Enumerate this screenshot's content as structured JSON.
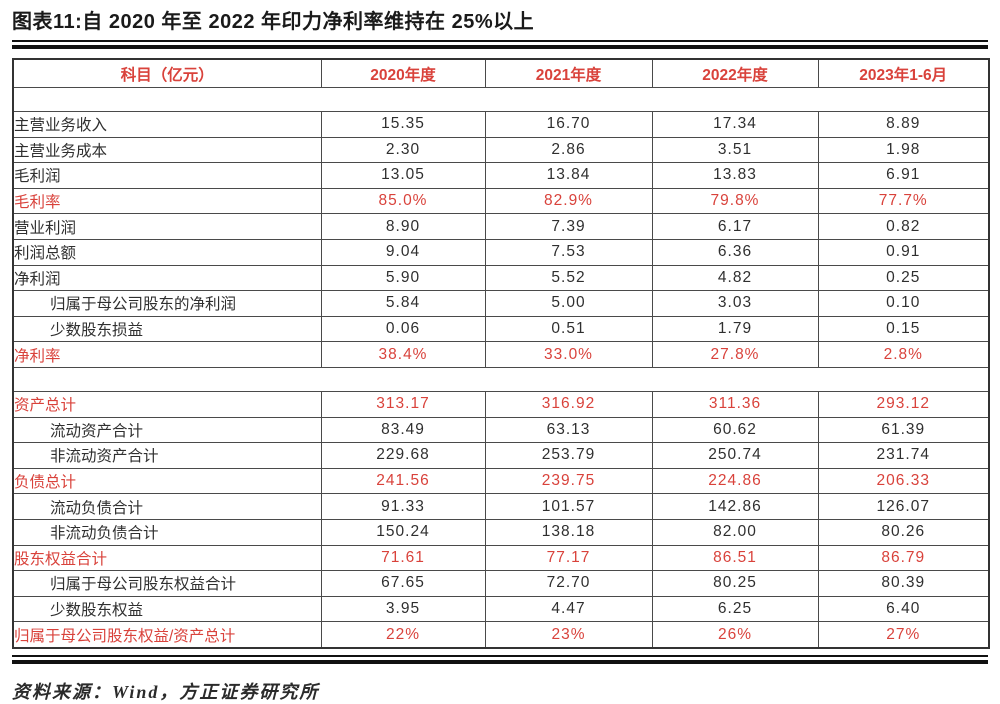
{
  "page": {
    "title": "图表11:自 2020 年至 2022 年印力净利率维持在 25%以上",
    "source": "资料来源：Wind，方正证券研究所"
  },
  "colors": {
    "accent_red": "#d9423b",
    "text": "#2f2f2f",
    "grid": "#4a4a4a",
    "rule": "#111111"
  },
  "table": {
    "headers": [
      "科目（亿元）",
      "2020年度",
      "2021年度",
      "2022年度",
      "2023年1-6月"
    ],
    "rows": [
      {
        "type": "spacer"
      },
      {
        "label": "主营业务收入",
        "values": [
          "15.35",
          "16.70",
          "17.34",
          "8.89"
        ],
        "red": false,
        "indent": false
      },
      {
        "label": "主营业务成本",
        "values": [
          "2.30",
          "2.86",
          "3.51",
          "1.98"
        ],
        "red": false,
        "indent": false
      },
      {
        "label": "毛利润",
        "values": [
          "13.05",
          "13.84",
          "13.83",
          "6.91"
        ],
        "red": false,
        "indent": false
      },
      {
        "label": "毛利率",
        "values": [
          "85.0%",
          "82.9%",
          "79.8%",
          "77.7%"
        ],
        "red": true,
        "indent": false
      },
      {
        "label": "营业利润",
        "values": [
          "8.90",
          "7.39",
          "6.17",
          "0.82"
        ],
        "red": false,
        "indent": false
      },
      {
        "label": "利润总额",
        "values": [
          "9.04",
          "7.53",
          "6.36",
          "0.91"
        ],
        "red": false,
        "indent": false
      },
      {
        "label": "净利润",
        "values": [
          "5.90",
          "5.52",
          "4.82",
          "0.25"
        ],
        "red": false,
        "indent": false
      },
      {
        "label": "归属于母公司股东的净利润",
        "values": [
          "5.84",
          "5.00",
          "3.03",
          "0.10"
        ],
        "red": false,
        "indent": true
      },
      {
        "label": "少数股东损益",
        "values": [
          "0.06",
          "0.51",
          "1.79",
          "0.15"
        ],
        "red": false,
        "indent": true
      },
      {
        "label": "净利率",
        "values": [
          "38.4%",
          "33.0%",
          "27.8%",
          "2.8%"
        ],
        "red": true,
        "indent": false
      },
      {
        "type": "spacer"
      },
      {
        "label": "资产总计",
        "values": [
          "313.17",
          "316.92",
          "311.36",
          "293.12"
        ],
        "red": true,
        "indent": false
      },
      {
        "label": "流动资产合计",
        "values": [
          "83.49",
          "63.13",
          "60.62",
          "61.39"
        ],
        "red": false,
        "indent": true
      },
      {
        "label": "非流动资产合计",
        "values": [
          "229.68",
          "253.79",
          "250.74",
          "231.74"
        ],
        "red": false,
        "indent": true
      },
      {
        "label": "负债总计",
        "values": [
          "241.56",
          "239.75",
          "224.86",
          "206.33"
        ],
        "red": true,
        "indent": false
      },
      {
        "label": "流动负债合计",
        "values": [
          "91.33",
          "101.57",
          "142.86",
          "126.07"
        ],
        "red": false,
        "indent": true
      },
      {
        "label": "非流动负债合计",
        "values": [
          "150.24",
          "138.18",
          "82.00",
          "80.26"
        ],
        "red": false,
        "indent": true
      },
      {
        "label": "股东权益合计",
        "values": [
          "71.61",
          "77.17",
          "86.51",
          "86.79"
        ],
        "red": true,
        "indent": false
      },
      {
        "label": "归属于母公司股东权益合计",
        "values": [
          "67.65",
          "72.70",
          "80.25",
          "80.39"
        ],
        "red": false,
        "indent": true
      },
      {
        "label": "少数股东权益",
        "values": [
          "3.95",
          "4.47",
          "6.25",
          "6.40"
        ],
        "red": false,
        "indent": true
      },
      {
        "label": "归属于母公司股东权益/资产总计",
        "values": [
          "22%",
          "23%",
          "26%",
          "27%"
        ],
        "red": true,
        "indent": false
      }
    ]
  }
}
